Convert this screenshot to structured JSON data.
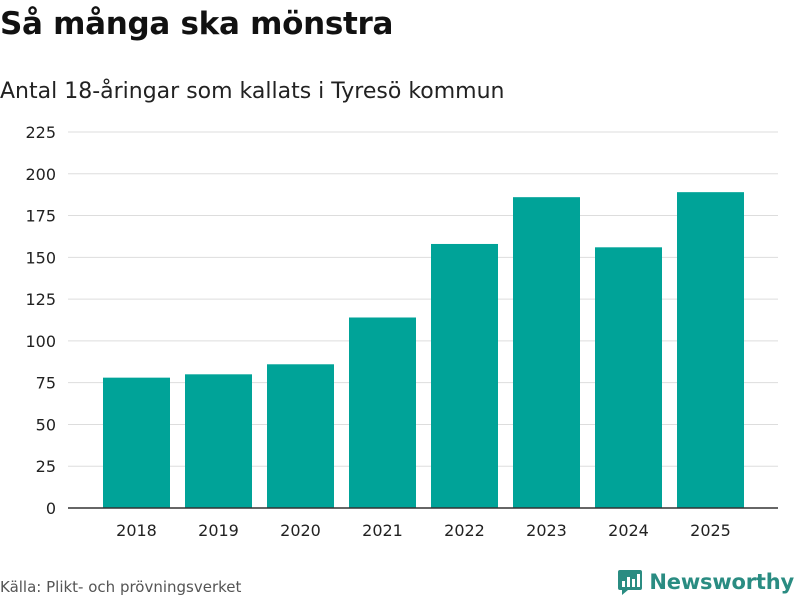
{
  "header": {
    "title": "Så många ska mönstra",
    "subtitle": "Antal 18-åringar som kallats i Tyresö kommun"
  },
  "footer": {
    "source": "Källa: Plikt- och prövningsverket",
    "brand": "Newsworthy"
  },
  "colors": {
    "bar": "#00a398",
    "grid": "#dddddd",
    "axis": "#333333",
    "brand": "#2a8c82"
  },
  "chart_data": {
    "type": "bar",
    "title": "Så många ska mönstra",
    "subtitle": "Antal 18-åringar som kallats i Tyresö kommun",
    "xlabel": "",
    "ylabel": "",
    "categories": [
      "2018",
      "2019",
      "2020",
      "2021",
      "2022",
      "2023",
      "2024",
      "2025"
    ],
    "values": [
      78,
      80,
      86,
      114,
      158,
      186,
      156,
      189
    ],
    "ylim": [
      0,
      225
    ],
    "yticks": [
      0,
      25,
      50,
      75,
      100,
      125,
      150,
      175,
      200,
      225
    ],
    "grid": true,
    "legend": "none"
  }
}
